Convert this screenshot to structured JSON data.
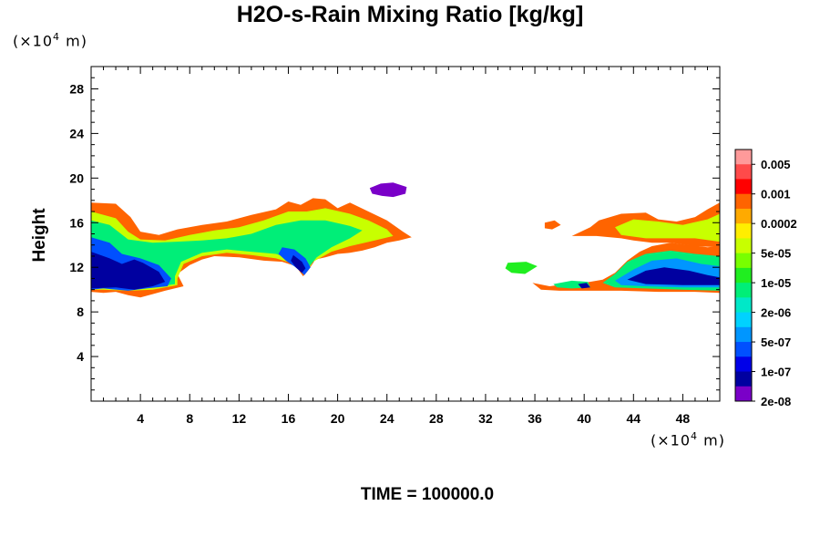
{
  "chart_data": {
    "type": "heatmap",
    "title": "H2O-s-Rain Mixing Ratio [kg/kg]",
    "ylabel": "Height",
    "xlabel": "",
    "x_unit_prefix": "(×10",
    "x_unit_exp": "4",
    "x_unit_suffix": " m)",
    "y_unit_prefix": "(×10",
    "y_unit_exp": "4",
    "y_unit_suffix": " m)",
    "x_ticks": [
      "4",
      "8",
      "12",
      "16",
      "20",
      "24",
      "28",
      "32",
      "36",
      "40",
      "44",
      "48"
    ],
    "y_ticks": [
      "4",
      "8",
      "12",
      "16",
      "20",
      "24",
      "28"
    ],
    "xlim": [
      0,
      51
    ],
    "ylim": [
      0,
      30
    ],
    "time_label": "TIME = 100000.0",
    "colorbar": {
      "labels": [
        "0.005",
        "0.001",
        "0.0002",
        "5e-05",
        "1e-05",
        "2e-06",
        "5e-07",
        "1e-07",
        "2e-08"
      ],
      "colors": [
        "#ff9a9a",
        "#ff4a4a",
        "#ff0000",
        "#ff6400",
        "#ffaa00",
        "#ffee00",
        "#c8ff00",
        "#78ff00",
        "#20ee20",
        "#00ee78",
        "#00e8c8",
        "#00d2ff",
        "#0096ff",
        "#0050ff",
        "#0000e8",
        "#0000a0",
        "#7a00c8"
      ]
    },
    "regions": [
      {
        "level": 3,
        "points": [
          [
            0,
            17.8
          ],
          [
            2,
            17.7
          ],
          [
            3.2,
            16.5
          ],
          [
            4,
            15.2
          ],
          [
            5.5,
            14.9
          ],
          [
            7,
            15.4
          ],
          [
            9,
            15.8
          ],
          [
            11,
            16.1
          ],
          [
            13,
            16.7
          ],
          [
            15,
            17.2
          ],
          [
            16,
            17.9
          ],
          [
            17,
            17.6
          ],
          [
            18,
            18.2
          ],
          [
            19,
            18.1
          ],
          [
            20,
            17.3
          ],
          [
            21,
            17.8
          ],
          [
            22.5,
            17
          ],
          [
            24,
            16.2
          ],
          [
            25.3,
            15.2
          ],
          [
            26,
            14.7
          ],
          [
            25,
            14.4
          ],
          [
            24,
            14.2
          ],
          [
            23,
            13.8
          ],
          [
            22,
            13.5
          ],
          [
            21,
            13.3
          ],
          [
            20,
            13.2
          ],
          [
            19,
            12.9
          ],
          [
            18.2,
            12.7
          ],
          [
            17.6,
            11.7
          ],
          [
            17.2,
            11.2
          ],
          [
            16.6,
            12.1
          ],
          [
            15.5,
            12.5
          ],
          [
            14,
            12.6
          ],
          [
            12,
            12.9
          ],
          [
            10,
            13
          ],
          [
            9,
            12.7
          ],
          [
            8,
            12.2
          ],
          [
            7,
            11.4
          ],
          [
            7.5,
            10.3
          ],
          [
            6,
            9.9
          ],
          [
            5,
            9.6
          ],
          [
            4,
            9.3
          ],
          [
            3,
            9.5
          ],
          [
            2,
            9.8
          ],
          [
            1,
            9.7
          ],
          [
            0,
            9.8
          ]
        ]
      },
      {
        "level": 6,
        "points": [
          [
            0,
            17
          ],
          [
            2,
            16.4
          ],
          [
            3,
            15.2
          ],
          [
            4,
            14.5
          ],
          [
            6,
            14.4
          ],
          [
            8,
            14.9
          ],
          [
            10,
            15.3
          ],
          [
            12,
            15.6
          ],
          [
            14,
            16.2
          ],
          [
            16,
            17
          ],
          [
            17.5,
            17
          ],
          [
            19,
            17.3
          ],
          [
            21,
            16.8
          ],
          [
            22.5,
            16.2
          ],
          [
            24,
            15.4
          ],
          [
            24.5,
            14.8
          ],
          [
            23,
            14.4
          ],
          [
            21,
            13.9
          ],
          [
            19.5,
            13.4
          ],
          [
            18,
            12.5
          ],
          [
            17.5,
            11.6
          ],
          [
            16.5,
            12.3
          ],
          [
            15,
            12.8
          ],
          [
            13,
            13.1
          ],
          [
            11,
            13.3
          ],
          [
            9,
            13
          ],
          [
            7.5,
            12.3
          ],
          [
            7,
            11
          ],
          [
            7,
            10.4
          ],
          [
            5,
            10
          ],
          [
            3,
            9.9
          ],
          [
            1,
            10
          ],
          [
            0,
            10
          ]
        ]
      },
      {
        "level": 9,
        "points": [
          [
            0,
            16.2
          ],
          [
            1.5,
            15.8
          ],
          [
            3,
            14.5
          ],
          [
            5,
            14.2
          ],
          [
            7,
            14.3
          ],
          [
            9,
            14.4
          ],
          [
            11,
            14.6
          ],
          [
            13,
            15
          ],
          [
            15,
            15.8
          ],
          [
            17,
            16.2
          ],
          [
            19,
            16.2
          ],
          [
            21,
            15.7
          ],
          [
            22,
            15.3
          ],
          [
            21,
            14.6
          ],
          [
            19.5,
            13.8
          ],
          [
            18.3,
            12.9
          ],
          [
            17.5,
            11.8
          ],
          [
            16.6,
            12.6
          ],
          [
            15,
            13.2
          ],
          [
            13,
            13.4
          ],
          [
            11,
            13.6
          ],
          [
            9,
            13.3
          ],
          [
            7.3,
            12.5
          ],
          [
            6.8,
            11.2
          ],
          [
            6.8,
            10.5
          ],
          [
            5,
            10.2
          ],
          [
            3,
            10.1
          ],
          [
            1,
            10.1
          ],
          [
            0,
            10.1
          ]
        ]
      },
      {
        "level": 13,
        "points": [
          [
            0,
            14.7
          ],
          [
            1.5,
            14.2
          ],
          [
            2.5,
            13.2
          ],
          [
            4,
            12.8
          ],
          [
            5.5,
            12.2
          ],
          [
            6.5,
            11
          ],
          [
            6.2,
            10.3
          ],
          [
            4.5,
            10.1
          ],
          [
            3,
            9.9
          ],
          [
            1,
            10.1
          ],
          [
            0,
            10
          ]
        ]
      },
      {
        "level": 15,
        "points": [
          [
            0,
            13.4
          ],
          [
            1.5,
            12.8
          ],
          [
            2.5,
            12.3
          ],
          [
            3.5,
            12.7
          ],
          [
            4.2,
            12.4
          ],
          [
            5.5,
            11.6
          ],
          [
            6,
            10.7
          ],
          [
            5,
            10.3
          ],
          [
            3.5,
            10
          ],
          [
            2,
            10.2
          ],
          [
            0,
            10.1
          ]
        ]
      },
      {
        "level": 13,
        "points": [
          [
            15.5,
            13.8
          ],
          [
            16.5,
            13.6
          ],
          [
            17.4,
            12.8
          ],
          [
            17.8,
            12
          ],
          [
            17.3,
            11.3
          ],
          [
            16.6,
            12
          ],
          [
            15.8,
            12.6
          ],
          [
            15.2,
            13.2
          ]
        ]
      },
      {
        "level": 15,
        "points": [
          [
            16.4,
            13.1
          ],
          [
            17.1,
            12.5
          ],
          [
            17.4,
            11.9
          ],
          [
            17.1,
            11.5
          ],
          [
            16.6,
            12
          ],
          [
            16.2,
            12.6
          ]
        ]
      },
      {
        "level": 16,
        "points": [
          [
            22.6,
            19.1
          ],
          [
            23.5,
            19.5
          ],
          [
            24.5,
            19.6
          ],
          [
            25.6,
            19.2
          ],
          [
            25.5,
            18.6
          ],
          [
            24.5,
            18.3
          ],
          [
            23.6,
            18.4
          ],
          [
            22.8,
            18.6
          ]
        ]
      },
      {
        "level": 3,
        "points": [
          [
            36.8,
            16
          ],
          [
            37.6,
            16.2
          ],
          [
            38.1,
            15.8
          ],
          [
            37.4,
            15.4
          ],
          [
            36.8,
            15.5
          ]
        ]
      },
      {
        "level": 8,
        "points": [
          [
            33.8,
            12.4
          ],
          [
            35.3,
            12.5
          ],
          [
            36.2,
            12.1
          ],
          [
            35.2,
            11.4
          ],
          [
            34.1,
            11.5
          ],
          [
            33.6,
            11.9
          ]
        ]
      },
      {
        "level": 3,
        "points": [
          [
            39,
            14.8
          ],
          [
            40.5,
            15.6
          ],
          [
            41.2,
            16.2
          ],
          [
            43,
            16.8
          ],
          [
            45,
            16.9
          ],
          [
            46,
            16.3
          ],
          [
            47.5,
            16.1
          ],
          [
            49,
            16.5
          ],
          [
            50,
            17.2
          ],
          [
            51,
            17.8
          ],
          [
            51,
            13.8
          ],
          [
            49,
            13.9
          ],
          [
            47,
            14.2
          ],
          [
            45.5,
            14.2
          ],
          [
            44,
            14.4
          ],
          [
            43,
            14.6
          ],
          [
            41,
            14.8
          ]
        ]
      },
      {
        "level": 6,
        "points": [
          [
            42.5,
            15.6
          ],
          [
            44,
            16.3
          ],
          [
            46,
            16.1
          ],
          [
            48,
            15.8
          ],
          [
            50,
            16.3
          ],
          [
            51,
            16.8
          ],
          [
            51,
            14.3
          ],
          [
            49,
            14.6
          ],
          [
            47,
            14.6
          ],
          [
            45,
            14.6
          ],
          [
            43,
            14.9
          ]
        ]
      },
      {
        "level": 3,
        "points": [
          [
            35.8,
            10.6
          ],
          [
            37.2,
            10.3
          ],
          [
            38.5,
            10.5
          ],
          [
            40,
            10.6
          ],
          [
            41.5,
            10.9
          ],
          [
            42.5,
            11.5
          ],
          [
            43.5,
            12.6
          ],
          [
            44.5,
            13.4
          ],
          [
            45.5,
            13.9
          ],
          [
            47,
            14.2
          ],
          [
            48.5,
            14
          ],
          [
            50,
            13.8
          ],
          [
            51,
            13.9
          ],
          [
            51,
            9.7
          ],
          [
            49,
            9.8
          ],
          [
            46,
            9.8
          ],
          [
            43,
            9.9
          ],
          [
            40,
            9.9
          ],
          [
            38,
            9.9
          ],
          [
            36.5,
            10
          ]
        ]
      },
      {
        "level": 9,
        "points": [
          [
            41.5,
            10.6
          ],
          [
            42.5,
            11.4
          ],
          [
            43.5,
            12.5
          ],
          [
            45,
            13.2
          ],
          [
            47,
            13.5
          ],
          [
            49,
            13.2
          ],
          [
            51,
            13
          ],
          [
            51,
            9.9
          ],
          [
            48,
            10
          ],
          [
            45,
            10.1
          ],
          [
            42.5,
            10.2
          ]
        ]
      },
      {
        "level": 12,
        "points": [
          [
            42.5,
            10.8
          ],
          [
            44,
            11.8
          ],
          [
            45.5,
            12.6
          ],
          [
            47.5,
            12.8
          ],
          [
            49.5,
            12.3
          ],
          [
            51,
            12.1
          ],
          [
            51,
            10.2
          ],
          [
            48,
            10.2
          ],
          [
            45,
            10.3
          ],
          [
            43,
            10.4
          ]
        ]
      },
      {
        "level": 15,
        "points": [
          [
            43.5,
            10.9
          ],
          [
            45,
            11.7
          ],
          [
            46.5,
            12
          ],
          [
            48.5,
            11.7
          ],
          [
            50,
            11.3
          ],
          [
            51,
            11.1
          ],
          [
            51,
            10.4
          ],
          [
            48,
            10.4
          ],
          [
            45,
            10.5
          ]
        ]
      },
      {
        "level": 9,
        "points": [
          [
            37.5,
            10.5
          ],
          [
            39,
            10.8
          ],
          [
            40.3,
            10.7
          ],
          [
            40.5,
            10.2
          ],
          [
            39,
            10.1
          ],
          [
            37.8,
            10.2
          ]
        ]
      },
      {
        "level": 15,
        "points": [
          [
            39.5,
            10.5
          ],
          [
            40.2,
            10.6
          ],
          [
            40.5,
            10.2
          ],
          [
            39.8,
            10.1
          ]
        ]
      }
    ]
  }
}
